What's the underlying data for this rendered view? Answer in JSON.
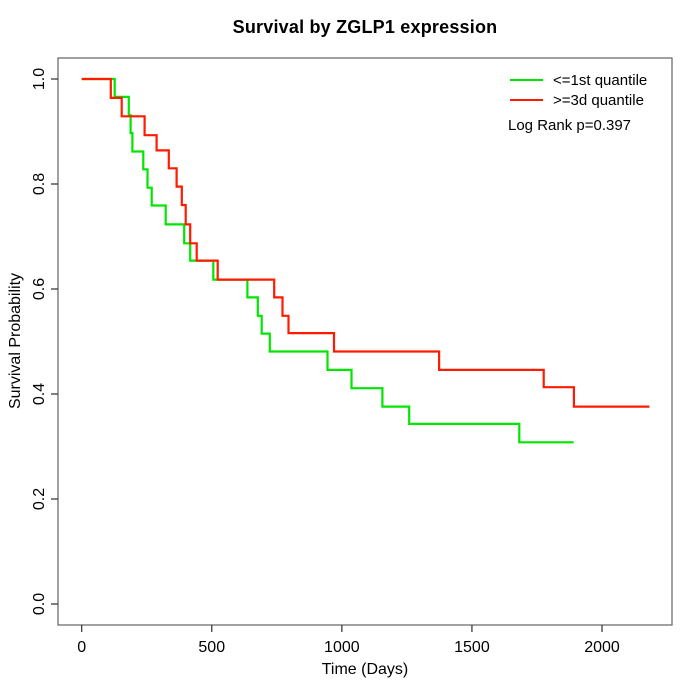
{
  "chart_data": {
    "type": "line",
    "subtype": "kaplan-meier-step-curves",
    "title": "Survival by ZGLP1 expression",
    "xlabel": "Time (Days)",
    "ylabel": "Survival Probability",
    "x_ticks": [
      0,
      500,
      1000,
      1500,
      2000
    ],
    "x_tick_labels": [
      "0",
      "500",
      "1000",
      "1500",
      "2000"
    ],
    "y_ticks": [
      0.0,
      0.2,
      0.4,
      0.6,
      0.8,
      1.0
    ],
    "y_tick_labels": [
      "0.0",
      "0.2",
      "0.4",
      "0.6",
      "0.8",
      "1.0"
    ],
    "xlim": [
      -91,
      2269
    ],
    "ylim": [
      -0.04,
      1.04
    ],
    "grid": false,
    "legend_position": "top-right-inside",
    "annotation": "Log Rank p=0.397",
    "series": [
      {
        "name": "<=1st quantile",
        "color": "#00e600",
        "end_time": 1891,
        "points": [
          [
            0,
            1.0
          ],
          [
            127,
            0.966
          ],
          [
            181,
            0.931
          ],
          [
            188,
            0.897
          ],
          [
            195,
            0.862
          ],
          [
            237,
            0.828
          ],
          [
            253,
            0.793
          ],
          [
            269,
            0.759
          ],
          [
            323,
            0.723
          ],
          [
            394,
            0.687
          ],
          [
            417,
            0.654
          ],
          [
            506,
            0.618
          ],
          [
            637,
            0.584
          ],
          [
            677,
            0.549
          ],
          [
            692,
            0.515
          ],
          [
            723,
            0.481
          ],
          [
            945,
            0.446
          ],
          [
            1037,
            0.411
          ],
          [
            1156,
            0.376
          ],
          [
            1259,
            0.343
          ],
          [
            1682,
            0.308
          ]
        ]
      },
      {
        "name": ">=3d quantile",
        "color": "#ff1a00",
        "end_time": 2182,
        "points": [
          [
            0,
            1.0
          ],
          [
            112,
            0.964
          ],
          [
            154,
            0.929
          ],
          [
            242,
            0.893
          ],
          [
            288,
            0.864
          ],
          [
            335,
            0.83
          ],
          [
            365,
            0.795
          ],
          [
            385,
            0.76
          ],
          [
            400,
            0.723
          ],
          [
            417,
            0.687
          ],
          [
            442,
            0.654
          ],
          [
            523,
            0.618
          ],
          [
            740,
            0.584
          ],
          [
            772,
            0.549
          ],
          [
            795,
            0.516
          ],
          [
            970,
            0.481
          ],
          [
            1374,
            0.446
          ],
          [
            1776,
            0.413
          ],
          [
            1892,
            0.376
          ]
        ]
      }
    ]
  }
}
